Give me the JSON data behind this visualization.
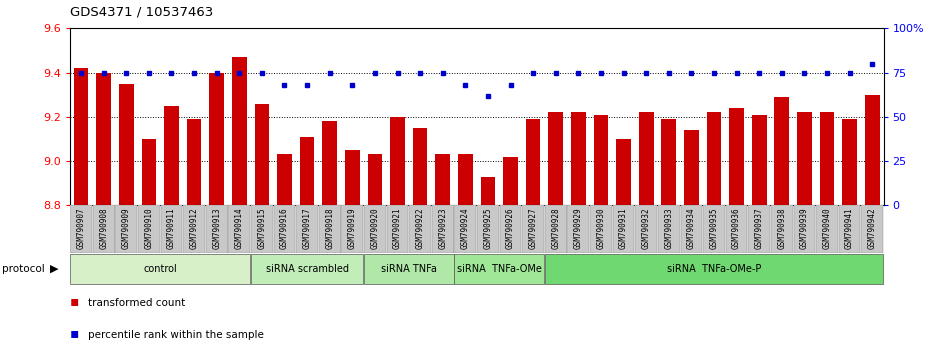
{
  "title": "GDS4371 / 10537463",
  "samples": [
    "GSM790907",
    "GSM790908",
    "GSM790909",
    "GSM790910",
    "GSM790911",
    "GSM790912",
    "GSM790913",
    "GSM790914",
    "GSM790915",
    "GSM790916",
    "GSM790917",
    "GSM790918",
    "GSM790919",
    "GSM790920",
    "GSM790921",
    "GSM790922",
    "GSM790923",
    "GSM790924",
    "GSM790925",
    "GSM790926",
    "GSM790927",
    "GSM790928",
    "GSM790929",
    "GSM790930",
    "GSM790931",
    "GSM790932",
    "GSM790933",
    "GSM790934",
    "GSM790935",
    "GSM790936",
    "GSM790937",
    "GSM790938",
    "GSM790939",
    "GSM790940",
    "GSM790941",
    "GSM790942"
  ],
  "bar_values": [
    9.42,
    9.4,
    9.35,
    9.1,
    9.25,
    9.19,
    9.4,
    9.47,
    9.26,
    9.03,
    9.11,
    9.18,
    9.05,
    9.03,
    9.2,
    9.15,
    9.03,
    9.03,
    8.93,
    9.02,
    9.19,
    9.22,
    9.22,
    9.21,
    9.1,
    9.22,
    9.19,
    9.14,
    9.22,
    9.24,
    9.21,
    9.29,
    9.22,
    9.22,
    9.19,
    9.3
  ],
  "percentile_values": [
    75,
    75,
    75,
    75,
    75,
    75,
    75,
    75,
    75,
    68,
    68,
    75,
    68,
    75,
    75,
    75,
    75,
    68,
    62,
    68,
    75,
    75,
    75,
    75,
    75,
    75,
    75,
    75,
    75,
    75,
    75,
    75,
    75,
    75,
    75,
    80
  ],
  "groups": [
    {
      "label": "control",
      "start": 0,
      "end": 8,
      "color": "#d8f0c8"
    },
    {
      "label": "siRNA scrambled",
      "start": 8,
      "end": 13,
      "color": "#c0edb8"
    },
    {
      "label": "siRNA TNFa",
      "start": 13,
      "end": 17,
      "color": "#b0e8a8"
    },
    {
      "label": "siRNA  TNFa-OMe",
      "start": 17,
      "end": 21,
      "color": "#a0e898"
    },
    {
      "label": "siRNA  TNFa-OMe-P",
      "start": 21,
      "end": 36,
      "color": "#70d870"
    }
  ],
  "ylim_left": [
    8.8,
    9.6
  ],
  "ylim_right": [
    0,
    100
  ],
  "yticks_left": [
    8.8,
    9.0,
    9.2,
    9.4,
    9.6
  ],
  "yticks_right": [
    0,
    25,
    50,
    75,
    100
  ],
  "bar_color": "#cc0000",
  "dot_color": "#0000cc",
  "bar_bottom": 8.8
}
